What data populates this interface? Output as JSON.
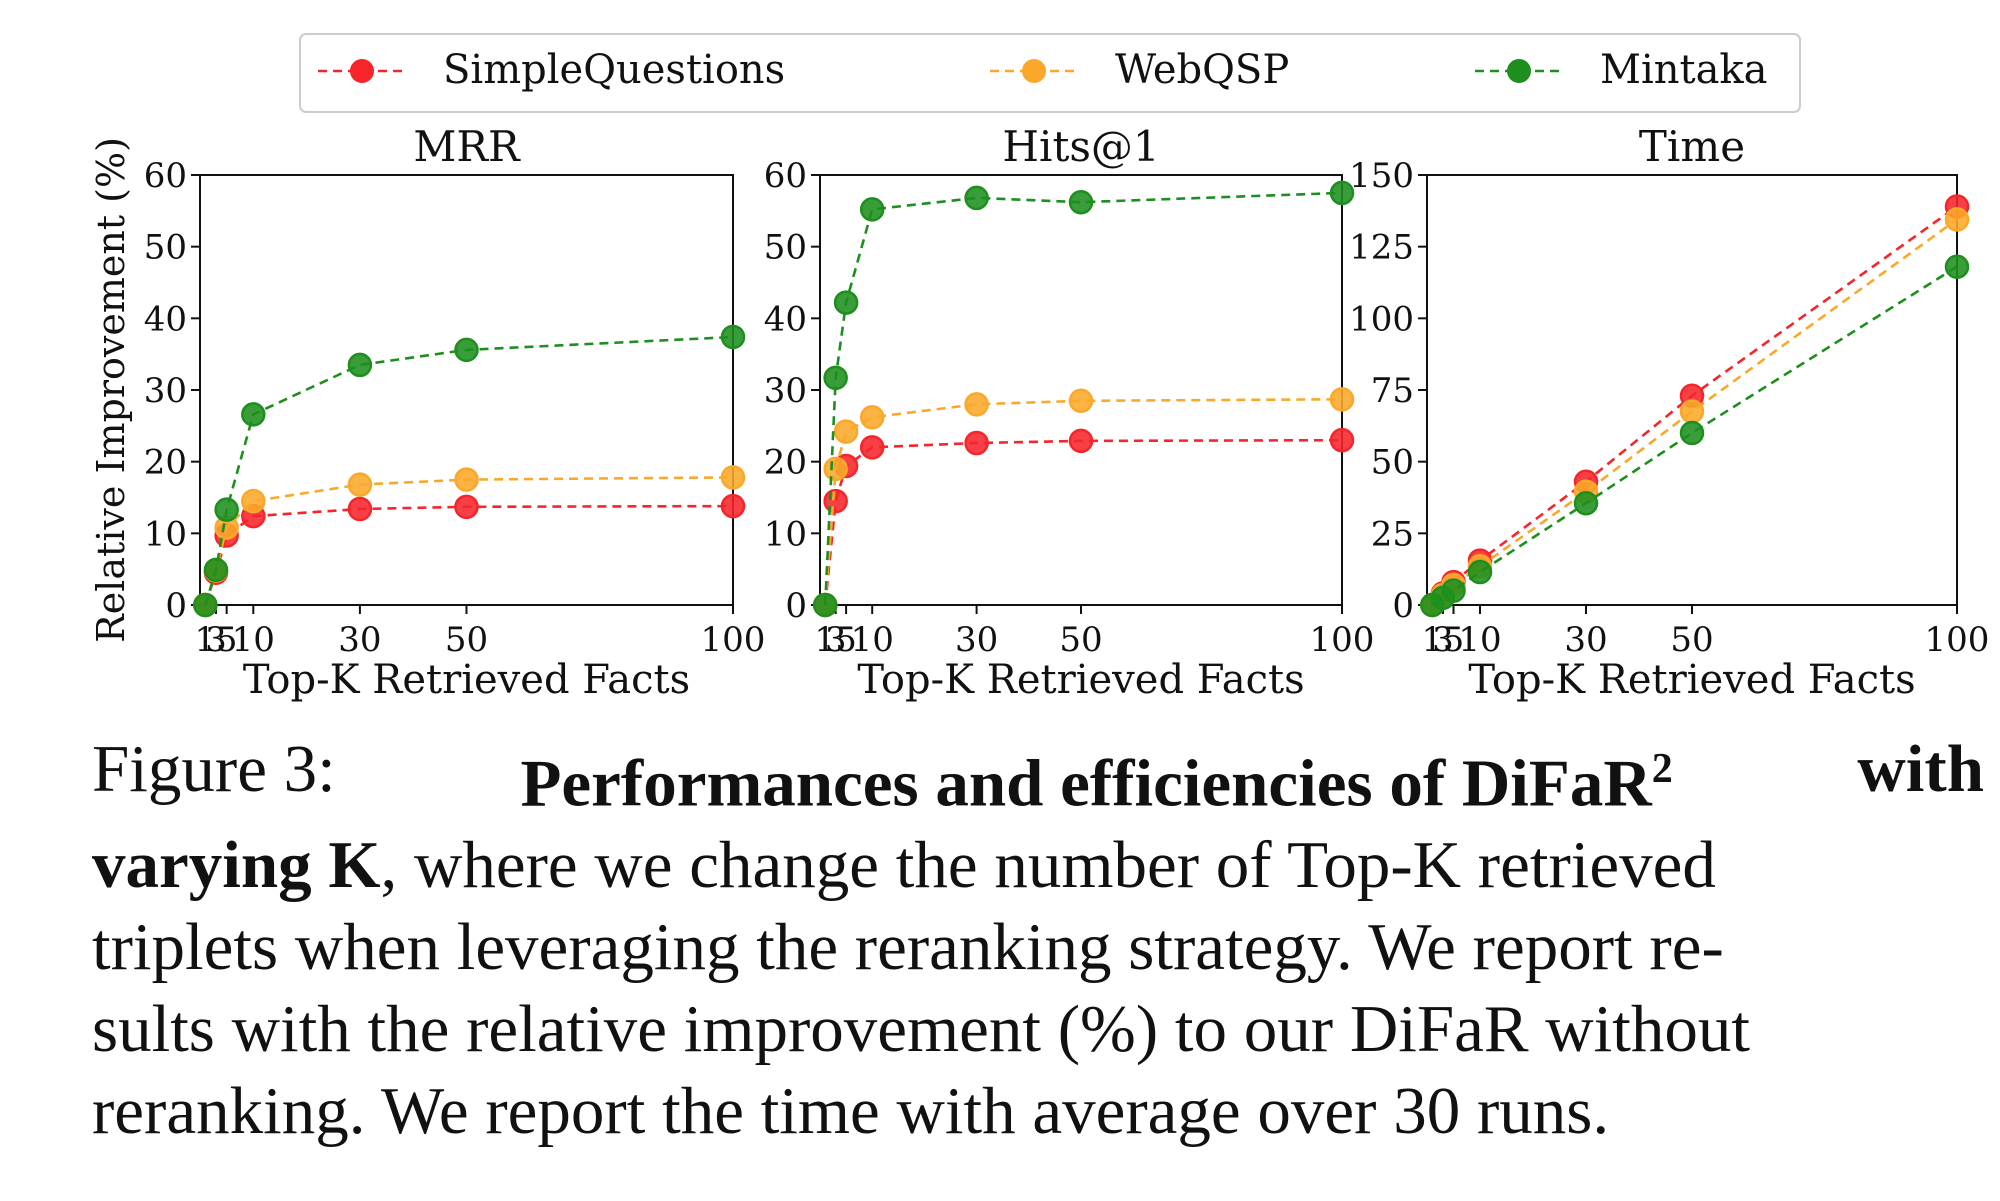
{
  "figure": {
    "legend": [
      {
        "name": "SimpleQuestions",
        "color": "#F5252B"
      },
      {
        "name": "WebQSP",
        "color": "#FBA82A"
      },
      {
        "name": "Mintaka",
        "color": "#1E8F1E"
      }
    ],
    "shared_ylabel": "Relative Improvement (%)"
  },
  "chart_data": [
    {
      "type": "line",
      "title": "MRR",
      "xlabel": "Top-K Retrieved Facts",
      "ylabel": "Relative Improvement (%)",
      "x": [
        1,
        3,
        5,
        10,
        30,
        50,
        100
      ],
      "xticks": [
        1,
        3,
        5,
        10,
        30,
        50,
        100
      ],
      "xlim": [
        0,
        100
      ],
      "ylim": [
        0,
        60
      ],
      "yticks": [
        0,
        10,
        20,
        30,
        40,
        50,
        60
      ],
      "series": [
        {
          "name": "SimpleQuestions",
          "values": [
            0,
            4.5,
            9.7,
            12.4,
            13.4,
            13.7,
            13.8
          ]
        },
        {
          "name": "WebQSP",
          "values": [
            0,
            4.8,
            10.8,
            14.5,
            16.8,
            17.5,
            17.8
          ]
        },
        {
          "name": "Mintaka",
          "values": [
            0,
            4.9,
            13.3,
            26.6,
            33.5,
            35.6,
            37.4
          ]
        }
      ]
    },
    {
      "type": "line",
      "title": "Hits@1",
      "xlabel": "Top-K Retrieved Facts",
      "x": [
        1,
        3,
        5,
        10,
        30,
        50,
        100
      ],
      "xticks": [
        1,
        3,
        5,
        10,
        30,
        50,
        100
      ],
      "xlim": [
        0,
        100
      ],
      "ylim": [
        0,
        60
      ],
      "yticks": [
        0,
        10,
        20,
        30,
        40,
        50,
        60
      ],
      "series": [
        {
          "name": "SimpleQuestions",
          "values": [
            0,
            14.5,
            19.4,
            22.0,
            22.6,
            22.9,
            23.0
          ]
        },
        {
          "name": "WebQSP",
          "values": [
            0,
            19.0,
            24.2,
            26.2,
            28.0,
            28.5,
            28.7
          ]
        },
        {
          "name": "Mintaka",
          "values": [
            0,
            31.7,
            42.2,
            55.2,
            56.8,
            56.2,
            57.5
          ]
        }
      ]
    },
    {
      "type": "line",
      "title": "Time",
      "xlabel": "Top-K Retrieved Facts",
      "x": [
        1,
        3,
        5,
        10,
        30,
        50,
        100
      ],
      "xticks": [
        1,
        3,
        5,
        10,
        30,
        50,
        100
      ],
      "xlim": [
        0,
        100
      ],
      "ylim": [
        0,
        150
      ],
      "yticks": [
        0,
        25,
        50,
        75,
        100,
        125,
        150
      ],
      "series": [
        {
          "name": "SimpleQuestions",
          "values": [
            0,
            4,
            8,
            15.5,
            43,
            73,
            139
          ]
        },
        {
          "name": "WebQSP",
          "values": [
            0,
            3.5,
            7,
            13.5,
            39.5,
            67.5,
            134.5
          ]
        },
        {
          "name": "Mintaka",
          "values": [
            0,
            2.5,
            5,
            11.5,
            35.5,
            60,
            118
          ]
        }
      ]
    }
  ],
  "caption": {
    "label": "Figure 3:",
    "bold_1": "Performances and efficiencies of DiFaR",
    "superscript": "2",
    "bold_2": "with",
    "bold_3": "varying K",
    "line2_rest": ", where we change the number of Top-K retrieved",
    "line3": "triplets when leveraging the reranking strategy. We report re-",
    "line4": "sults with the relative improvement (%) to our DiFaR without",
    "line5": "reranking. We report the time with average over 30 runs."
  }
}
